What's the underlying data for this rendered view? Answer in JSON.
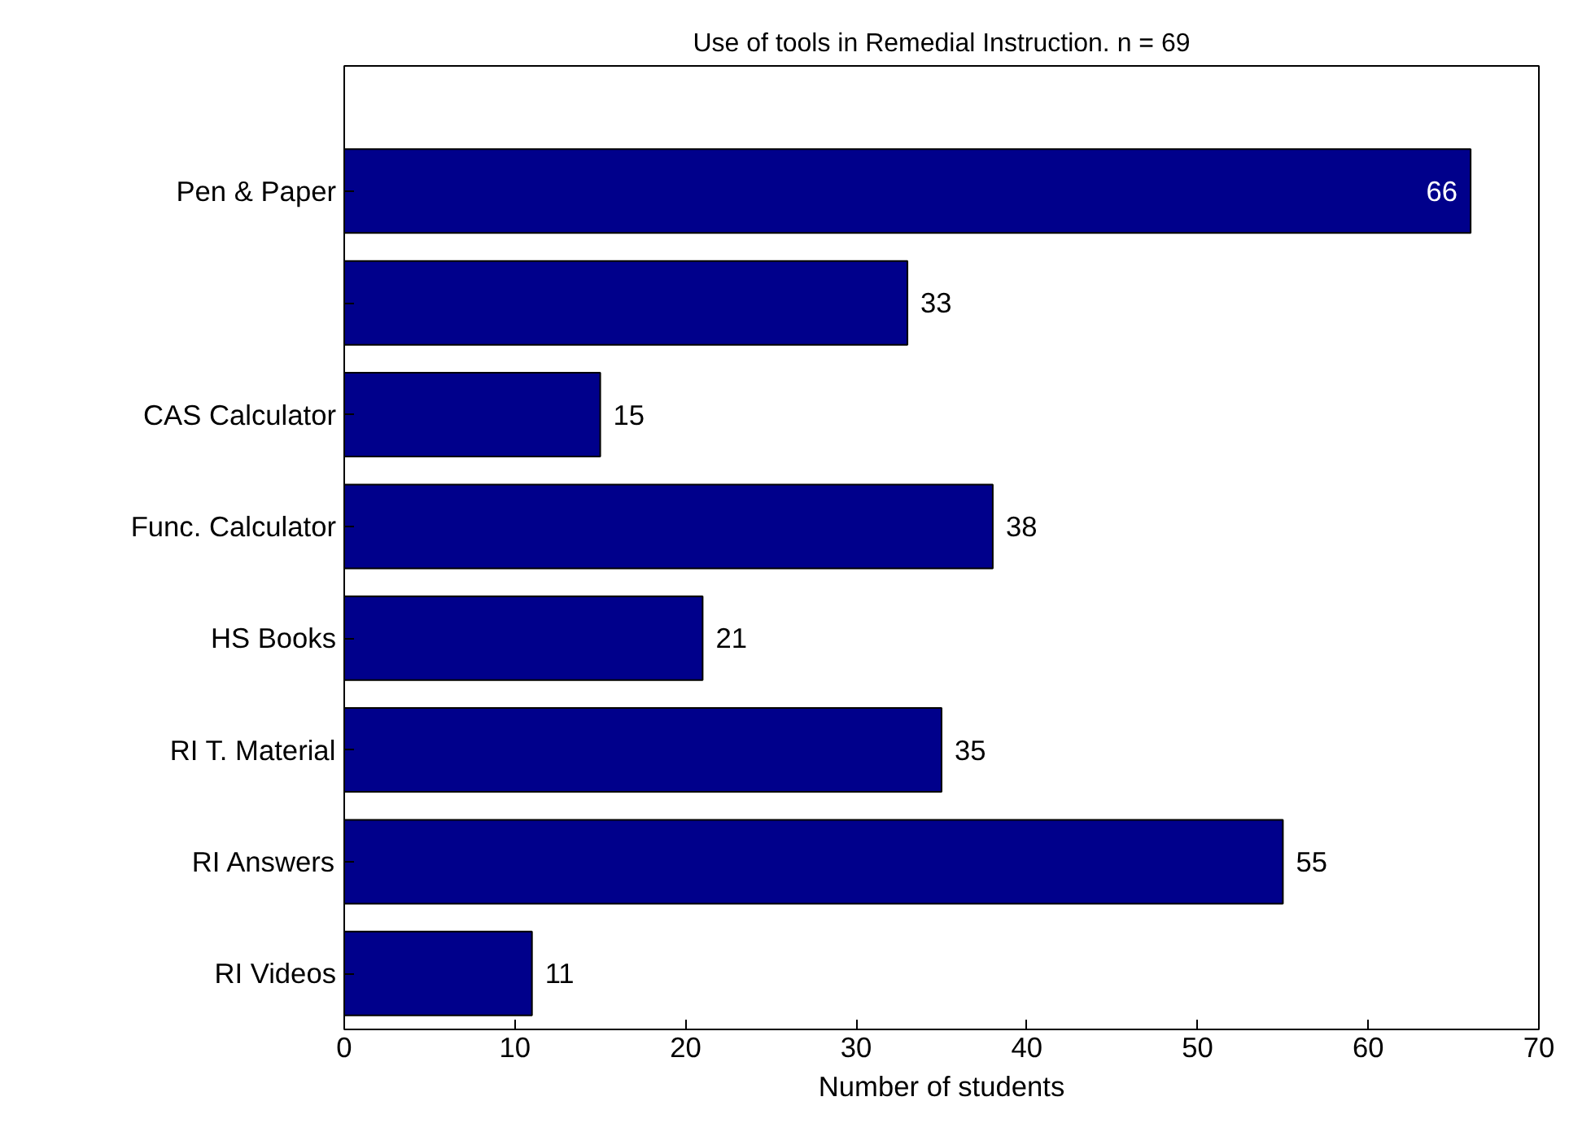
{
  "chart_data": {
    "type": "bar",
    "orientation": "horizontal",
    "title": "Use of tools in Remedial Instruction. n = 69",
    "xlabel": "Number of students",
    "categories": [
      "Pen & Paper",
      null,
      "CAS Calculator",
      "Func. Calculator",
      "HS Books",
      "RI T. Material",
      "RI Answers",
      "RI Videos"
    ],
    "values": [
      66,
      33,
      15,
      38,
      21,
      35,
      55,
      11
    ],
    "color": "#00008b",
    "data_labels": true,
    "xlim": [
      0,
      70
    ],
    "xticks": [
      0,
      10,
      20,
      30,
      40,
      50,
      60,
      70
    ],
    "grid": false
  }
}
